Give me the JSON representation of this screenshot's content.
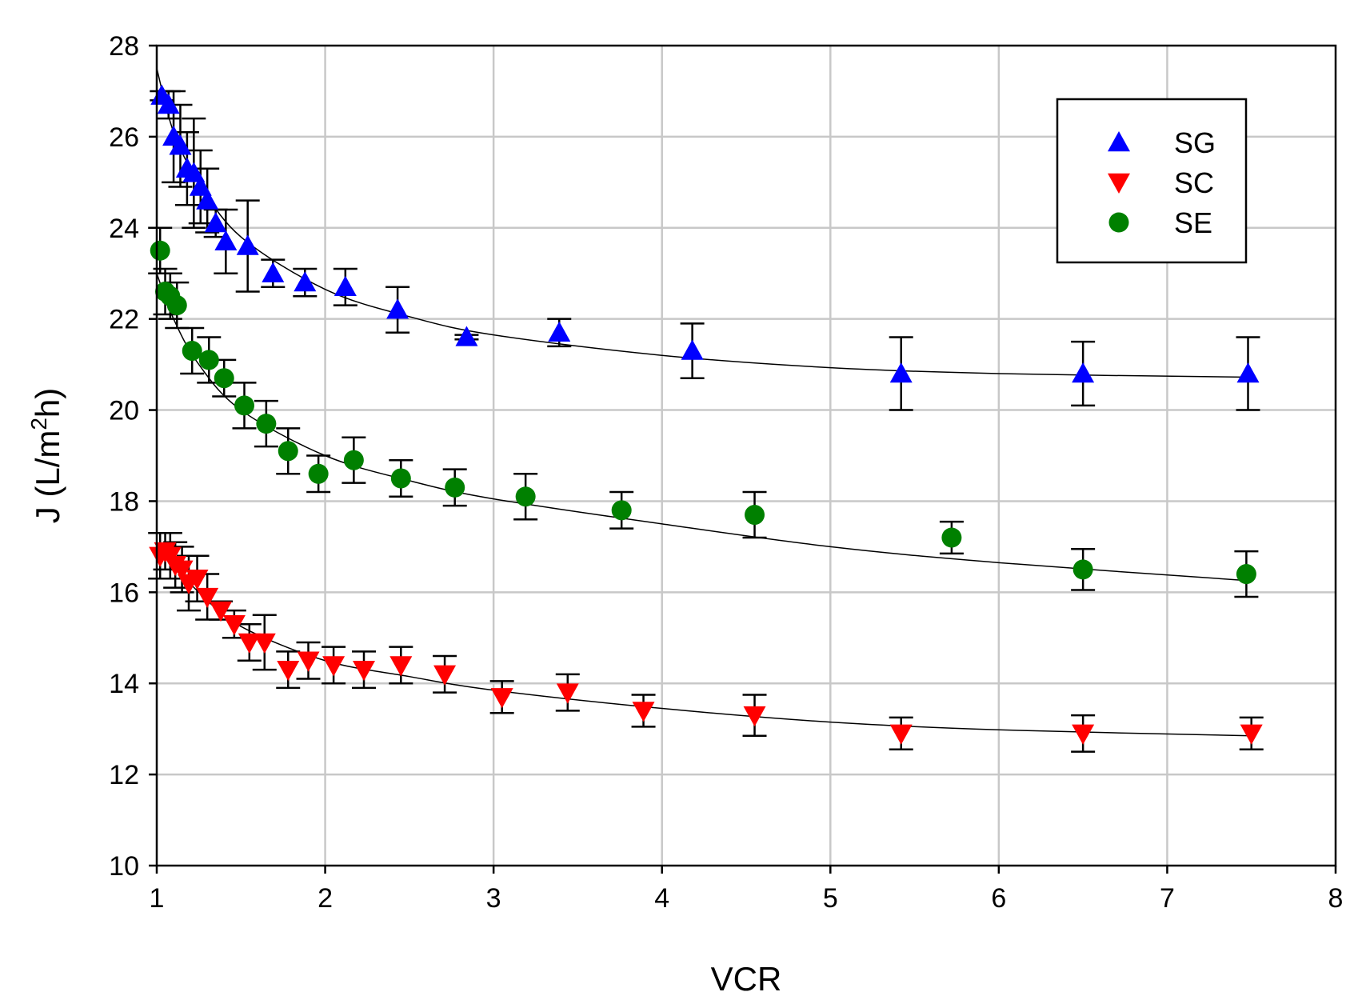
{
  "chart_data": {
    "type": "scatter",
    "title": "",
    "xlabel": "VCR",
    "ylabel": "J (L/m²h)",
    "ylabel_parts": {
      "pre": "J (L/m",
      "sup": "2",
      "post": "h)"
    },
    "xlim": [
      1,
      8
    ],
    "ylim": [
      10,
      28
    ],
    "xticks": [
      "1",
      "2",
      "3",
      "4",
      "5",
      "6",
      "7",
      "8"
    ],
    "yticks": [
      "10",
      "12",
      "14",
      "16",
      "18",
      "20",
      "22",
      "24",
      "26",
      "28"
    ],
    "grid": true,
    "legend_position": "top-right",
    "series": [
      {
        "name": "SG",
        "marker": "triangle-up",
        "color": "#0000ff",
        "x": [
          1.03,
          1.07,
          1.1,
          1.14,
          1.18,
          1.22,
          1.26,
          1.3,
          1.35,
          1.41,
          1.54,
          1.69,
          1.88,
          2.12,
          2.43,
          2.84,
          3.39,
          4.18,
          5.42,
          6.5,
          7.48
        ],
        "y": [
          26.9,
          26.7,
          26.0,
          25.8,
          25.3,
          25.2,
          24.9,
          24.6,
          24.1,
          23.7,
          23.6,
          23.0,
          22.8,
          22.7,
          22.2,
          21.6,
          21.7,
          21.3,
          20.8,
          20.8,
          20.8
        ],
        "err": [
          0.1,
          0.3,
          1.0,
          0.9,
          0.8,
          1.2,
          0.8,
          0.7,
          0.3,
          0.7,
          1.0,
          0.3,
          0.3,
          0.4,
          0.5,
          0.05,
          0.3,
          0.6,
          0.8,
          0.7,
          0.8
        ],
        "fit_x": [
          1.0,
          1.1,
          1.25,
          1.5,
          2.0,
          2.5,
          3.0,
          4.0,
          5.0,
          6.0,
          7.5
        ],
        "fit_y": [
          27.5,
          26.1,
          25.0,
          23.8,
          22.65,
          22.05,
          21.65,
          21.2,
          20.93,
          20.8,
          20.72
        ]
      },
      {
        "name": "SC",
        "marker": "triangle-down",
        "color": "#ff0000",
        "x": [
          1.02,
          1.05,
          1.08,
          1.11,
          1.15,
          1.19,
          1.24,
          1.3,
          1.38,
          1.46,
          1.55,
          1.64,
          1.78,
          1.9,
          2.05,
          2.23,
          2.45,
          2.71,
          3.05,
          3.44,
          3.89,
          4.55,
          5.42,
          6.5,
          7.5
        ],
        "y": [
          16.8,
          16.9,
          16.8,
          16.6,
          16.5,
          16.2,
          16.3,
          15.9,
          15.6,
          15.3,
          14.9,
          14.9,
          14.3,
          14.5,
          14.4,
          14.3,
          14.4,
          14.2,
          13.7,
          13.8,
          13.4,
          13.3,
          12.9,
          12.9,
          12.9
        ],
        "err": [
          0.5,
          0.4,
          0.5,
          0.5,
          0.5,
          0.6,
          0.5,
          0.5,
          0.2,
          0.3,
          0.4,
          0.6,
          0.4,
          0.4,
          0.4,
          0.4,
          0.4,
          0.4,
          0.35,
          0.4,
          0.35,
          0.45,
          0.35,
          0.4,
          0.35
        ],
        "fit_x": [
          1.0,
          1.1,
          1.25,
          1.5,
          2.0,
          2.5,
          3.0,
          4.0,
          5.0,
          6.0,
          7.5
        ],
        "fit_y": [
          17.0,
          16.6,
          16.0,
          15.25,
          14.5,
          14.15,
          13.85,
          13.45,
          13.15,
          12.98,
          12.85
        ]
      },
      {
        "name": "SE",
        "marker": "circle",
        "color": "#008000",
        "x": [
          1.02,
          1.05,
          1.08,
          1.12,
          1.21,
          1.31,
          1.4,
          1.52,
          1.65,
          1.78,
          1.96,
          2.17,
          2.45,
          2.77,
          3.19,
          3.76,
          4.55,
          5.72,
          6.5,
          7.47
        ],
        "y": [
          23.5,
          22.6,
          22.5,
          22.3,
          21.3,
          21.1,
          20.7,
          20.1,
          19.7,
          19.1,
          18.6,
          18.9,
          18.5,
          18.3,
          18.1,
          17.8,
          17.7,
          17.2,
          16.5,
          16.4
        ],
        "err": [
          0.5,
          0.5,
          0.5,
          0.5,
          0.5,
          0.5,
          0.4,
          0.5,
          0.5,
          0.5,
          0.4,
          0.5,
          0.4,
          0.4,
          0.5,
          0.4,
          0.5,
          0.35,
          0.45,
          0.5
        ],
        "fit_x": [
          1.0,
          1.1,
          1.25,
          1.5,
          2.0,
          2.5,
          3.0,
          4.0,
          5.0,
          6.0,
          7.5
        ],
        "fit_y": [
          23.0,
          22.0,
          21.0,
          20.0,
          19.0,
          18.45,
          18.05,
          17.5,
          17.0,
          16.65,
          16.25
        ]
      }
    ]
  }
}
